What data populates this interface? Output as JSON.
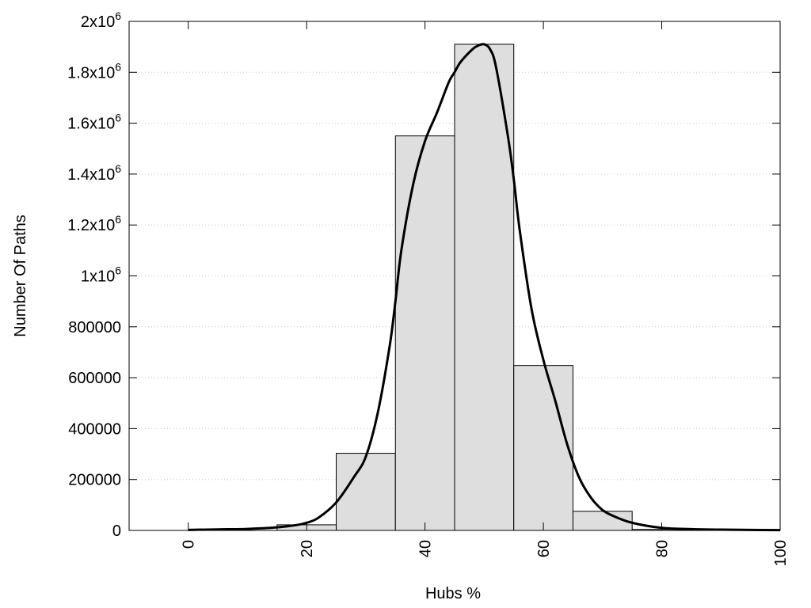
{
  "chart_data": {
    "type": "bar",
    "xlabel": "Hubs %",
    "ylabel": "Number Of Paths",
    "xlim": [
      -10,
      100
    ],
    "ylim": [
      0,
      2000000
    ],
    "grid": true,
    "x_ticks": [
      {
        "value": 0,
        "label": "0"
      },
      {
        "value": 20,
        "label": "20"
      },
      {
        "value": 40,
        "label": "40"
      },
      {
        "value": 60,
        "label": "60"
      },
      {
        "value": 80,
        "label": "80"
      },
      {
        "value": 100,
        "label": "100"
      }
    ],
    "y_ticks": [
      {
        "value": 0,
        "base": "0",
        "sup": ""
      },
      {
        "value": 200000,
        "base": "200000",
        "sup": ""
      },
      {
        "value": 400000,
        "base": "400000",
        "sup": ""
      },
      {
        "value": 600000,
        "base": "600000",
        "sup": ""
      },
      {
        "value": 800000,
        "base": "800000",
        "sup": ""
      },
      {
        "value": 1000000,
        "base": "1x10",
        "sup": "6"
      },
      {
        "value": 1200000,
        "base": "1.2x10",
        "sup": "6"
      },
      {
        "value": 1400000,
        "base": "1.4x10",
        "sup": "6"
      },
      {
        "value": 1600000,
        "base": "1.6x10",
        "sup": "6"
      },
      {
        "value": 1800000,
        "base": "1.8x10",
        "sup": "6"
      },
      {
        "value": 2000000,
        "base": "2x10",
        "sup": "6"
      }
    ],
    "bars": [
      {
        "x0": 15,
        "x1": 25,
        "value": 22000
      },
      {
        "x0": 25,
        "x1": 35,
        "value": 303000
      },
      {
        "x0": 35,
        "x1": 45,
        "value": 1550000
      },
      {
        "x0": 45,
        "x1": 55,
        "value": 1910000
      },
      {
        "x0": 55,
        "x1": 65,
        "value": 648000
      },
      {
        "x0": 65,
        "x1": 75,
        "value": 75000
      },
      {
        "x0": 75,
        "x1": 85,
        "value": 4000
      }
    ],
    "curve": {
      "x": [
        0,
        5,
        10,
        15,
        18,
        20,
        22,
        25,
        28,
        30,
        32,
        34,
        35,
        36,
        38,
        40,
        42,
        44,
        45,
        46,
        48,
        49,
        50,
        51,
        52,
        54,
        55,
        56,
        58,
        60,
        62,
        64,
        66,
        68,
        70,
        72,
        75,
        80,
        85,
        90,
        95,
        100
      ],
      "y": [
        2000,
        4000,
        6000,
        12000,
        20000,
        30000,
        50000,
        110000,
        210000,
        290000,
        460000,
        720000,
        900000,
        1100000,
        1360000,
        1530000,
        1640000,
        1760000,
        1800000,
        1840000,
        1890000,
        1905000,
        1910000,
        1890000,
        1820000,
        1550000,
        1380000,
        1180000,
        870000,
        670000,
        510000,
        340000,
        210000,
        130000,
        80000,
        55000,
        30000,
        10000,
        5000,
        3000,
        2000,
        1000
      ]
    }
  }
}
